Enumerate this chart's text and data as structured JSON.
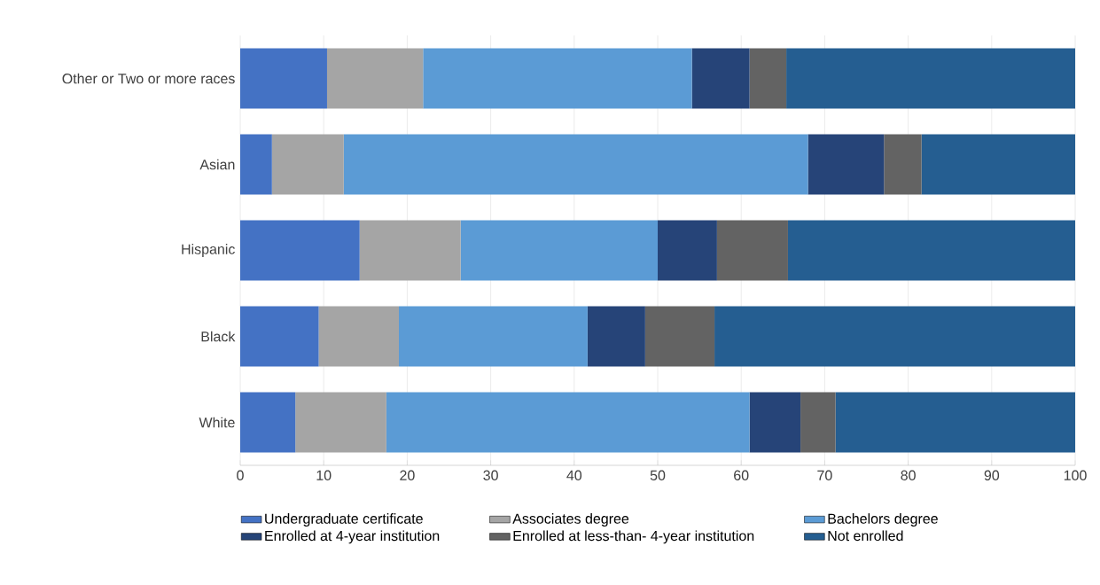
{
  "chart_data": {
    "type": "bar",
    "orientation": "horizontal",
    "stacked": true,
    "categories": [
      "Other or Two or more races",
      "Asian",
      "Hispanic",
      "Black",
      "White"
    ],
    "series": [
      {
        "name": "Undergraduate certificate",
        "color": "#4472c4",
        "values": [
          10.4,
          3.8,
          14.3,
          9.4,
          6.6
        ]
      },
      {
        "name": "Associates degree",
        "color": "#a5a5a5",
        "values": [
          11.5,
          8.6,
          12.1,
          9.6,
          10.9
        ]
      },
      {
        "name": "Bachelors degree",
        "color": "#5b9bd5",
        "values": [
          32.2,
          55.6,
          23.6,
          22.6,
          43.5
        ]
      },
      {
        "name": "Enrolled at 4-year institution",
        "color": "#264478",
        "values": [
          6.9,
          9.1,
          7.1,
          6.9,
          6.1
        ]
      },
      {
        "name": "Enrolled at less-than- 4-year institution",
        "color": "#636363",
        "values": [
          4.4,
          4.5,
          8.5,
          8.3,
          4.2
        ]
      },
      {
        "name": "Not enrolled",
        "color": "#255e91",
        "values": [
          34.6,
          18.4,
          34.4,
          43.2,
          28.7
        ]
      }
    ],
    "xlim": [
      0,
      100
    ],
    "xticks": [
      0,
      10,
      20,
      30,
      40,
      50,
      60,
      70,
      80,
      90,
      100
    ],
    "grid": "x",
    "legend": "bottom"
  }
}
